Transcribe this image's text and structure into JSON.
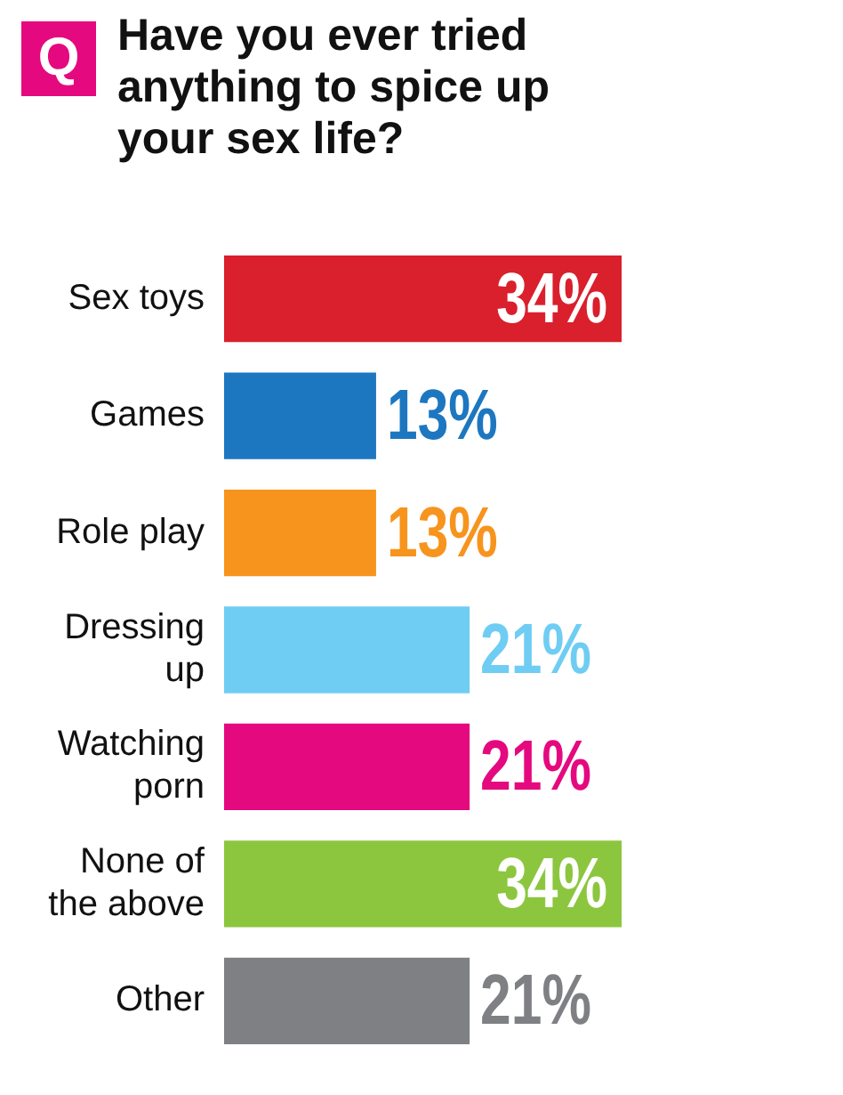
{
  "chart_data": {
    "type": "bar",
    "orientation": "horizontal",
    "title": "Have you ever tried anything to spice up your sex life?",
    "annotations": [
      "Q"
    ],
    "categories": [
      "Sex toys",
      "Games",
      "Role play",
      "Dressing up",
      "Watching porn",
      "None of the above",
      "Other"
    ],
    "values": [
      34,
      13,
      13,
      21,
      21,
      34,
      21
    ],
    "colors": [
      "#d9202c",
      "#1d77c0",
      "#f7941d",
      "#6fcdf3",
      "#e5097f",
      "#8cc63f",
      "#7f8083"
    ],
    "value_labels": [
      "34%",
      "13%",
      "13%",
      "21%",
      "21%",
      "34%",
      "21%"
    ],
    "legend": false
  }
}
